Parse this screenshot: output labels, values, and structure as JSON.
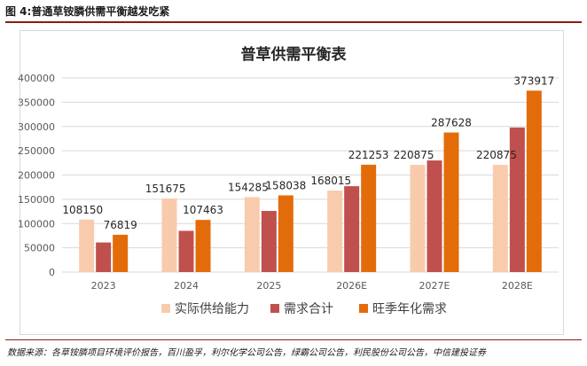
{
  "figure": {
    "header": "图 4:普通草铵膦供需平衡越发吃紧",
    "source": "数据来源：各草铵膦项目环境评价报告，百川盈孚，利尔化学公司公告，绿霸公司公告，利民股份公司公告，中信建投证券"
  },
  "colors": {
    "rule": "#8c1c13",
    "supply": "#F8CBAD",
    "demand_total": "#C0504D",
    "peak_demand": "#E36C0A",
    "grid": "#d9d9d9",
    "axis_text": "#595959"
  },
  "chart_data": {
    "type": "bar",
    "title": "普草供需平衡表",
    "categories": [
      "2023",
      "2024",
      "2025",
      "2026E",
      "2027E",
      "2028E"
    ],
    "y_ticks": [
      "0",
      "50000",
      "100000",
      "150000",
      "200000",
      "250000",
      "300000",
      "350000",
      "400000"
    ],
    "ylim": [
      0,
      400000
    ],
    "grid": true,
    "legend_position": "bottom",
    "series": [
      {
        "name": "实际供给能力",
        "values": [
          108150,
          151675,
          154285,
          168015,
          220875,
          220875
        ],
        "labels": [
          "108150",
          "151675",
          "154285",
          "168015",
          "220875",
          "220875"
        ]
      },
      {
        "name": "需求合计",
        "values": [
          61000,
          85000,
          126000,
          177000,
          230000,
          298000
        ],
        "labels": [
          "",
          "",
          "",
          "",
          "",
          ""
        ]
      },
      {
        "name": "旺季年化需求",
        "values": [
          76819,
          107463,
          158038,
          221253,
          287628,
          373917
        ],
        "labels": [
          "76819",
          "107463",
          "158038",
          "221253",
          "287628",
          "373917"
        ]
      }
    ]
  }
}
